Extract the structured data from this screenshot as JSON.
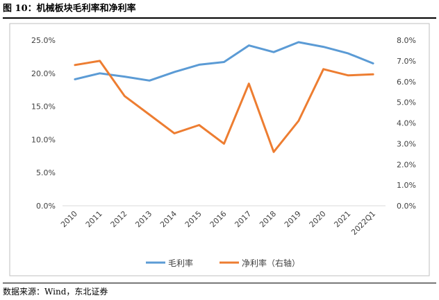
{
  "title": "图  10：机械板块毛利率和净利率",
  "source": "数据来源：Wind，东北证券",
  "colors": {
    "gross": "#5B9BD5",
    "net": "#ED7D31",
    "frame": "#BFBFBF"
  },
  "chart_data": {
    "type": "line",
    "categories": [
      "2010",
      "2011",
      "2012",
      "2013",
      "2014",
      "2015",
      "2016",
      "2017",
      "2018",
      "2019",
      "2020",
      "2021",
      "2022Q1"
    ],
    "series": [
      {
        "name": "毛利率",
        "axis": "left",
        "values": [
          19.1,
          20.0,
          19.5,
          18.9,
          20.2,
          21.3,
          21.7,
          24.2,
          23.2,
          24.7,
          24.0,
          23.0,
          21.5
        ]
      },
      {
        "name": "净利率（右轴）",
        "axis": "right",
        "values": [
          6.8,
          7.0,
          5.3,
          4.4,
          3.5,
          3.9,
          3.0,
          5.9,
          2.6,
          4.1,
          6.6,
          6.3,
          6.35
        ]
      }
    ],
    "ylim_left": [
      0,
      25
    ],
    "ylim_right": [
      0,
      8
    ],
    "yticks_left": [
      "0.0%",
      "5.0%",
      "10.0%",
      "15.0%",
      "20.0%",
      "25.0%"
    ],
    "yticks_right": [
      "0.0%",
      "1.0%",
      "2.0%",
      "3.0%",
      "4.0%",
      "5.0%",
      "6.0%",
      "7.0%",
      "8.0%"
    ],
    "legend_position": "bottom",
    "grid": false
  }
}
